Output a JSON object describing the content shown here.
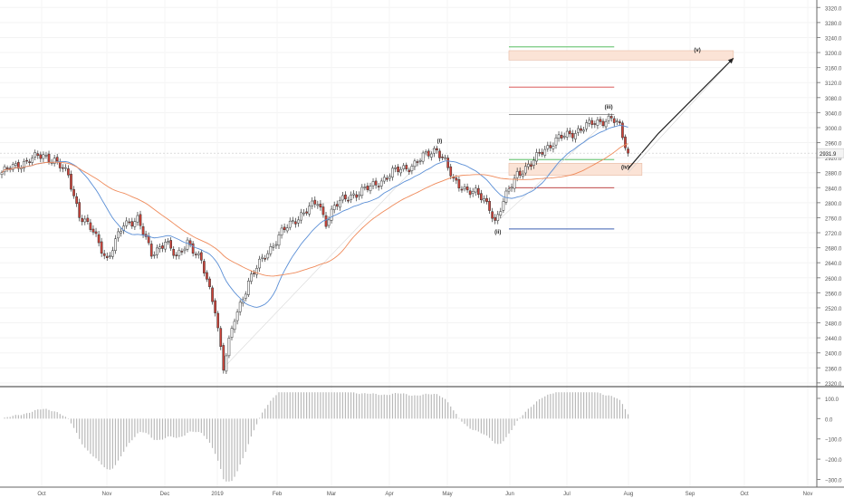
{
  "chart_data": [
    {
      "type": "candlestick",
      "symbol_price_label": "2931.9",
      "y_ticks": [
        "3320.0",
        "3280.0",
        "3240.0",
        "3200.0",
        "3160.0",
        "3120.0",
        "3080.0",
        "3040.0",
        "3000.0",
        "2960.0",
        "2920.0",
        "2880.0",
        "2840.0",
        "2800.0",
        "2760.0",
        "2720.0",
        "2680.0",
        "2640.0",
        "2600.0",
        "2560.0",
        "2520.0",
        "2480.0",
        "2440.0",
        "2400.0",
        "2360.0",
        "2320.0"
      ],
      "ylim": [
        2310,
        3340
      ],
      "x_labels": [
        "Oct",
        "Nov",
        "Dec",
        "2019",
        "Feb",
        "Mar",
        "Apr",
        "May",
        "Jun",
        "Jul",
        "Aug",
        "Sep",
        "Oct",
        "Nov"
      ],
      "close_anchors": [
        {
          "i": 0,
          "v": 2880
        },
        {
          "i": 10,
          "v": 2915
        },
        {
          "i": 15,
          "v": 2925
        },
        {
          "i": 19,
          "v": 2915
        },
        {
          "i": 24,
          "v": 2870
        },
        {
          "i": 28,
          "v": 2770
        },
        {
          "i": 33,
          "v": 2720
        },
        {
          "i": 38,
          "v": 2650
        },
        {
          "i": 44,
          "v": 2740
        },
        {
          "i": 49,
          "v": 2760
        },
        {
          "i": 54,
          "v": 2660
        },
        {
          "i": 59,
          "v": 2700
        },
        {
          "i": 63,
          "v": 2650
        },
        {
          "i": 67,
          "v": 2700
        },
        {
          "i": 72,
          "v": 2640
        },
        {
          "i": 77,
          "v": 2520
        },
        {
          "i": 80,
          "v": 2360
        },
        {
          "i": 84,
          "v": 2490
        },
        {
          "i": 89,
          "v": 2590
        },
        {
          "i": 95,
          "v": 2660
        },
        {
          "i": 101,
          "v": 2720
        },
        {
          "i": 108,
          "v": 2770
        },
        {
          "i": 114,
          "v": 2800
        },
        {
          "i": 117,
          "v": 2750
        },
        {
          "i": 120,
          "v": 2790
        },
        {
          "i": 126,
          "v": 2820
        },
        {
          "i": 133,
          "v": 2840
        },
        {
          "i": 141,
          "v": 2880
        },
        {
          "i": 148,
          "v": 2900
        },
        {
          "i": 154,
          "v": 2930
        },
        {
          "i": 157,
          "v": 2945
        },
        {
          "i": 160,
          "v": 2910
        },
        {
          "i": 163,
          "v": 2855
        },
        {
          "i": 167,
          "v": 2840
        },
        {
          "i": 171,
          "v": 2825
        },
        {
          "i": 176,
          "v": 2790
        },
        {
          "i": 178,
          "v": 2750
        },
        {
          "i": 181,
          "v": 2800
        },
        {
          "i": 186,
          "v": 2880
        },
        {
          "i": 191,
          "v": 2900
        },
        {
          "i": 195,
          "v": 2940
        },
        {
          "i": 201,
          "v": 2970
        },
        {
          "i": 207,
          "v": 2990
        },
        {
          "i": 213,
          "v": 3010
        },
        {
          "i": 217,
          "v": 3020
        },
        {
          "i": 220,
          "v": 3025
        },
        {
          "i": 223,
          "v": 3000
        },
        {
          "i": 226,
          "v": 2932
        }
      ],
      "sma_fast_color": "#5b8fd6",
      "sma_slow_color": "#ef8a5a",
      "up_color": "#ffffff",
      "down_color": "#d0443a",
      "wave_labels": [
        {
          "text": "(i)",
          "i": 158,
          "v": 2960
        },
        {
          "text": "(ii)",
          "i": 179,
          "v": 2718
        },
        {
          "text": "(iii)",
          "i": 219,
          "v": 3050
        },
        {
          "text": "(iv)",
          "i": 225,
          "v": 2890
        },
        {
          "text": "(v)",
          "i": 251,
          "v": 3203
        }
      ],
      "fib_levels": [
        {
          "v": 3215,
          "color": "#3fb54a"
        },
        {
          "v": 3185,
          "color": "#3c5fb0"
        },
        {
          "v": 3108,
          "color": "#d64545"
        },
        {
          "v": 3035,
          "color": "#8a8a8a"
        },
        {
          "v": 2915,
          "color": "#3fb54a"
        },
        {
          "v": 2840,
          "color": "#b83030"
        },
        {
          "v": 2730,
          "color": "#3c5fb0"
        }
      ],
      "zones": [
        {
          "v_top": 3205,
          "v_bottom": 3180
        },
        {
          "v_top": 2905,
          "v_bottom": 2873
        }
      ]
    },
    {
      "type": "histogram",
      "y_ticks": [
        "100.0",
        "0.0",
        "−100.0",
        "−200.0",
        "−300.0"
      ],
      "ylim": [
        -320,
        140
      ]
    }
  ]
}
